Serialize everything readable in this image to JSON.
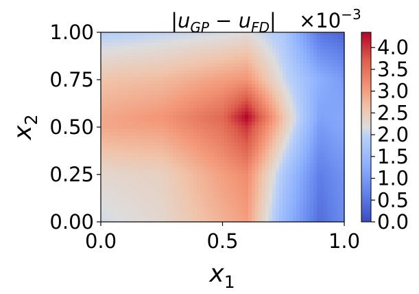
{
  "chart_data": {
    "type": "heatmap",
    "title": "|u_GP − u_FD|",
    "title_parts": {
      "open_bar": "|",
      "a_base": "u",
      "a_sub": "GP",
      "minus": " − ",
      "b_base": "u",
      "b_sub": "FD",
      "close_bar": "|"
    },
    "xlabel": {
      "base": "x",
      "sub": "1"
    },
    "ylabel": {
      "base": "x",
      "sub": "2"
    },
    "xlim": [
      0.0,
      1.0
    ],
    "ylim": [
      0.0,
      1.0
    ],
    "xticks": [
      "0.0",
      "0.5",
      "1.0"
    ],
    "yticks": [
      "0.00",
      "0.25",
      "0.50",
      "0.75",
      "1.00"
    ],
    "colormap": "coolwarm",
    "colorbar": {
      "range": [
        0.0,
        4.35
      ],
      "ticks": [
        "0.0",
        "0.5",
        "1.0",
        "1.5",
        "2.0",
        "2.5",
        "3.0",
        "3.5",
        "4.0"
      ],
      "scale_label": {
        "base": "×10",
        "exp": "−3"
      }
    },
    "grid_x": [
      0.0,
      0.25,
      0.5,
      0.6,
      0.75,
      0.9,
      1.0
    ],
    "grid_y": [
      0.0,
      0.25,
      0.5,
      0.55,
      0.75,
      1.0
    ],
    "values": [
      [
        2.1,
        2.3,
        2.8,
        3.0,
        1.5,
        0.4,
        0.8
      ],
      [
        2.3,
        2.4,
        3.0,
        3.2,
        1.8,
        0.6,
        0.9
      ],
      [
        2.9,
        3.0,
        3.5,
        4.0,
        2.5,
        1.0,
        1.2
      ],
      [
        2.9,
        3.1,
        3.6,
        4.35,
        2.6,
        1.1,
        1.2
      ],
      [
        2.6,
        2.7,
        3.0,
        3.1,
        2.1,
        1.3,
        1.0
      ],
      [
        1.9,
        2.0,
        2.1,
        2.2,
        1.8,
        0.5,
        0.3
      ]
    ],
    "grid": false,
    "colors": {
      "low": "#3b4cc0",
      "mid": "#dddddd",
      "high": "#b40426"
    }
  }
}
